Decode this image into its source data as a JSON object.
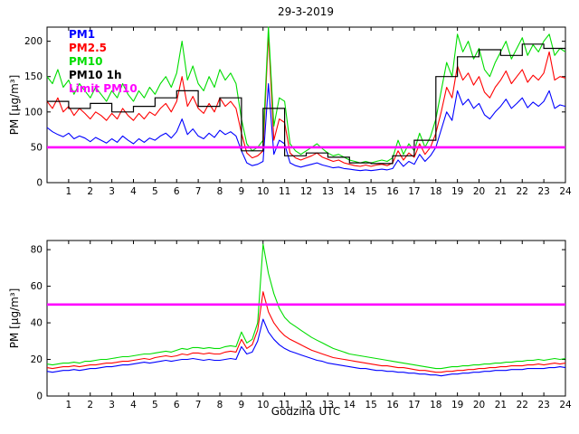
{
  "chart_data": [
    {
      "type": "line",
      "title": "29-3-2019",
      "ylabel": "PM [μg/m³]",
      "xlabel": "",
      "xlim": [
        0,
        24
      ],
      "ylim": [
        0,
        220
      ],
      "x_ticks": [
        1,
        2,
        3,
        4,
        5,
        6,
        7,
        8,
        9,
        10,
        11,
        12,
        13,
        14,
        15,
        16,
        17,
        18,
        19,
        20,
        21,
        22,
        23,
        24
      ],
      "y_ticks": [
        0,
        50,
        100,
        150,
        200
      ],
      "x_start": 0,
      "x_step": 0.25,
      "legend_position": "top-left",
      "series": [
        {
          "name": "PM1",
          "type": "line",
          "color": "#0000ff",
          "values": [
            78,
            72,
            68,
            65,
            70,
            62,
            66,
            63,
            58,
            64,
            60,
            56,
            62,
            57,
            66,
            60,
            55,
            62,
            57,
            63,
            60,
            66,
            70,
            63,
            72,
            90,
            68,
            76,
            66,
            62,
            70,
            64,
            74,
            68,
            72,
            66,
            45,
            28,
            24,
            26,
            30,
            140,
            40,
            60,
            55,
            28,
            24,
            22,
            24,
            26,
            28,
            25,
            23,
            21,
            22,
            20,
            19,
            18,
            17,
            18,
            17,
            18,
            19,
            18,
            20,
            32,
            23,
            30,
            26,
            40,
            30,
            38,
            50,
            75,
            100,
            88,
            130,
            110,
            118,
            105,
            112,
            96,
            90,
            100,
            108,
            118,
            105,
            112,
            120,
            106,
            114,
            108,
            115,
            130,
            105,
            110,
            108
          ]
        },
        {
          "name": "PM2.5",
          "type": "line",
          "color": "#ff0000",
          "values": [
            115,
            105,
            120,
            100,
            108,
            95,
            105,
            98,
            90,
            100,
            95,
            88,
            98,
            90,
            105,
            95,
            88,
            98,
            90,
            100,
            95,
            105,
            112,
            100,
            115,
            150,
            108,
            122,
            105,
            98,
            112,
            100,
            120,
            108,
            115,
            105,
            70,
            42,
            35,
            38,
            45,
            210,
            60,
            90,
            85,
            42,
            35,
            32,
            35,
            38,
            42,
            36,
            33,
            30,
            32,
            28,
            26,
            24,
            23,
            25,
            23,
            25,
            26,
            24,
            28,
            45,
            32,
            42,
            36,
            55,
            40,
            50,
            70,
            100,
            135,
            120,
            165,
            145,
            155,
            138,
            150,
            128,
            120,
            135,
            145,
            158,
            140,
            150,
            160,
            142,
            152,
            145,
            155,
            185,
            145,
            150,
            148
          ]
        },
        {
          "name": "PM10",
          "type": "line",
          "color": "#00dd00",
          "values": [
            150,
            140,
            160,
            135,
            145,
            125,
            140,
            130,
            120,
            135,
            125,
            115,
            130,
            120,
            140,
            125,
            115,
            130,
            120,
            135,
            125,
            140,
            150,
            135,
            155,
            200,
            145,
            165,
            140,
            130,
            150,
            135,
            160,
            145,
            155,
            140,
            90,
            55,
            45,
            50,
            60,
            230,
            80,
            120,
            115,
            55,
            45,
            40,
            45,
            50,
            55,
            48,
            42,
            38,
            40,
            36,
            32,
            30,
            28,
            30,
            28,
            30,
            32,
            30,
            35,
            60,
            40,
            55,
            45,
            70,
            50,
            65,
            90,
            130,
            170,
            150,
            210,
            185,
            200,
            175,
            190,
            160,
            150,
            170,
            185,
            200,
            175,
            190,
            205,
            180,
            195,
            185,
            200,
            210,
            180,
            190,
            185
          ]
        },
        {
          "name": "PM10 1h",
          "type": "step",
          "color": "#000000",
          "values": [
            115,
            105,
            112,
            100,
            108,
            120,
            130,
            108,
            120,
            45,
            105,
            38,
            42,
            36,
            28,
            27,
            38,
            60,
            150,
            178,
            188,
            180,
            196,
            190
          ]
        },
        {
          "name": "Limit PM10",
          "type": "hline",
          "color": "#ff00ff",
          "value": 50
        }
      ]
    },
    {
      "type": "line",
      "title": "",
      "ylabel": "PM [μg/m³]",
      "xlabel": "Godzina UTC",
      "xlim": [
        0,
        24
      ],
      "ylim": [
        0,
        85
      ],
      "x_ticks": [
        1,
        2,
        3,
        4,
        5,
        6,
        7,
        8,
        9,
        10,
        11,
        12,
        13,
        14,
        15,
        16,
        17,
        18,
        19,
        20,
        21,
        22,
        23,
        24
      ],
      "y_ticks": [
        0,
        20,
        40,
        60,
        80
      ],
      "x_start": 0,
      "x_step": 0.25,
      "legend_position": "none",
      "series": [
        {
          "name": "PM1",
          "type": "line",
          "color": "#0000ff",
          "values": [
            13.5,
            13,
            13.5,
            14,
            14,
            14.5,
            14,
            14.5,
            15,
            15,
            15.5,
            16,
            16,
            16.5,
            17,
            17,
            17.5,
            18,
            18.5,
            18,
            18.5,
            19,
            19.5,
            19,
            19.5,
            20,
            20,
            20.5,
            20,
            19.5,
            20,
            19.5,
            19.5,
            20,
            20.5,
            20,
            27,
            23,
            24,
            30,
            42,
            35,
            31,
            28,
            26,
            24.5,
            23.5,
            22.5,
            21.5,
            20.5,
            19.5,
            19,
            18,
            17.5,
            17,
            16.5,
            16,
            15.5,
            15,
            15,
            14.5,
            14,
            14,
            13.5,
            13.5,
            13,
            13,
            12.5,
            12.5,
            12,
            12,
            11.5,
            11.5,
            11,
            11.5,
            12,
            12,
            12.5,
            12.5,
            13,
            13,
            13.5,
            13.5,
            14,
            14,
            14,
            14.5,
            14.5,
            14.5,
            15,
            15,
            15,
            15,
            15.5,
            15.5,
            16,
            15.5
          ]
        },
        {
          "name": "PM2.5",
          "type": "line",
          "color": "#ff0000",
          "values": [
            15.5,
            15,
            15.5,
            16,
            16,
            16.5,
            16,
            16.5,
            17,
            17,
            17.5,
            18,
            18,
            18.5,
            19,
            19,
            19.5,
            20,
            20.5,
            20,
            21,
            21.5,
            22,
            21.5,
            22,
            23,
            22.5,
            23.5,
            23.5,
            23,
            23.5,
            23,
            23,
            24,
            24.5,
            24,
            31,
            26,
            28,
            36,
            57,
            46,
            40,
            36,
            33,
            31,
            29.5,
            28,
            26.5,
            25,
            24,
            23,
            22,
            21,
            20.5,
            20,
            19.5,
            19,
            18.5,
            18,
            17.5,
            17,
            16.5,
            16.5,
            16,
            15.5,
            15.5,
            15,
            14.5,
            14,
            14,
            13.5,
            13,
            13,
            13.5,
            13.5,
            14,
            14,
            14.5,
            14.5,
            15,
            15,
            15.5,
            15.5,
            16,
            16,
            16.5,
            16.5,
            16.5,
            17,
            17,
            17.5,
            17,
            17.5,
            18,
            17.5,
            18
          ]
        },
        {
          "name": "PM10",
          "type": "line",
          "color": "#00dd00",
          "values": [
            17.5,
            17,
            17.5,
            18,
            18,
            18.5,
            18,
            19,
            19,
            19.5,
            20,
            20,
            20.5,
            21,
            21.5,
            21.5,
            22,
            22.5,
            23,
            23,
            23.5,
            24,
            24.5,
            24,
            25,
            26,
            25.5,
            26.5,
            26.5,
            26,
            26.5,
            26,
            26,
            27,
            27.5,
            27,
            35,
            29,
            31,
            40,
            83,
            67,
            56,
            48,
            43,
            40,
            38,
            36,
            34,
            32,
            30.5,
            29,
            27.5,
            26,
            25,
            24,
            23,
            22.5,
            22,
            21.5,
            21,
            20.5,
            20,
            19.5,
            19,
            18.5,
            18,
            17.5,
            17,
            16.5,
            16,
            15.5,
            15,
            15,
            15.5,
            16,
            16,
            16.5,
            16.5,
            17,
            17,
            17.5,
            17.5,
            18,
            18,
            18.5,
            18.5,
            19,
            19,
            19.5,
            19.5,
            20,
            19.5,
            20,
            20.5,
            20,
            20.5
          ]
        },
        {
          "name": "Limit PM10",
          "type": "hline",
          "color": "#ff00ff",
          "value": 50
        }
      ]
    }
  ]
}
